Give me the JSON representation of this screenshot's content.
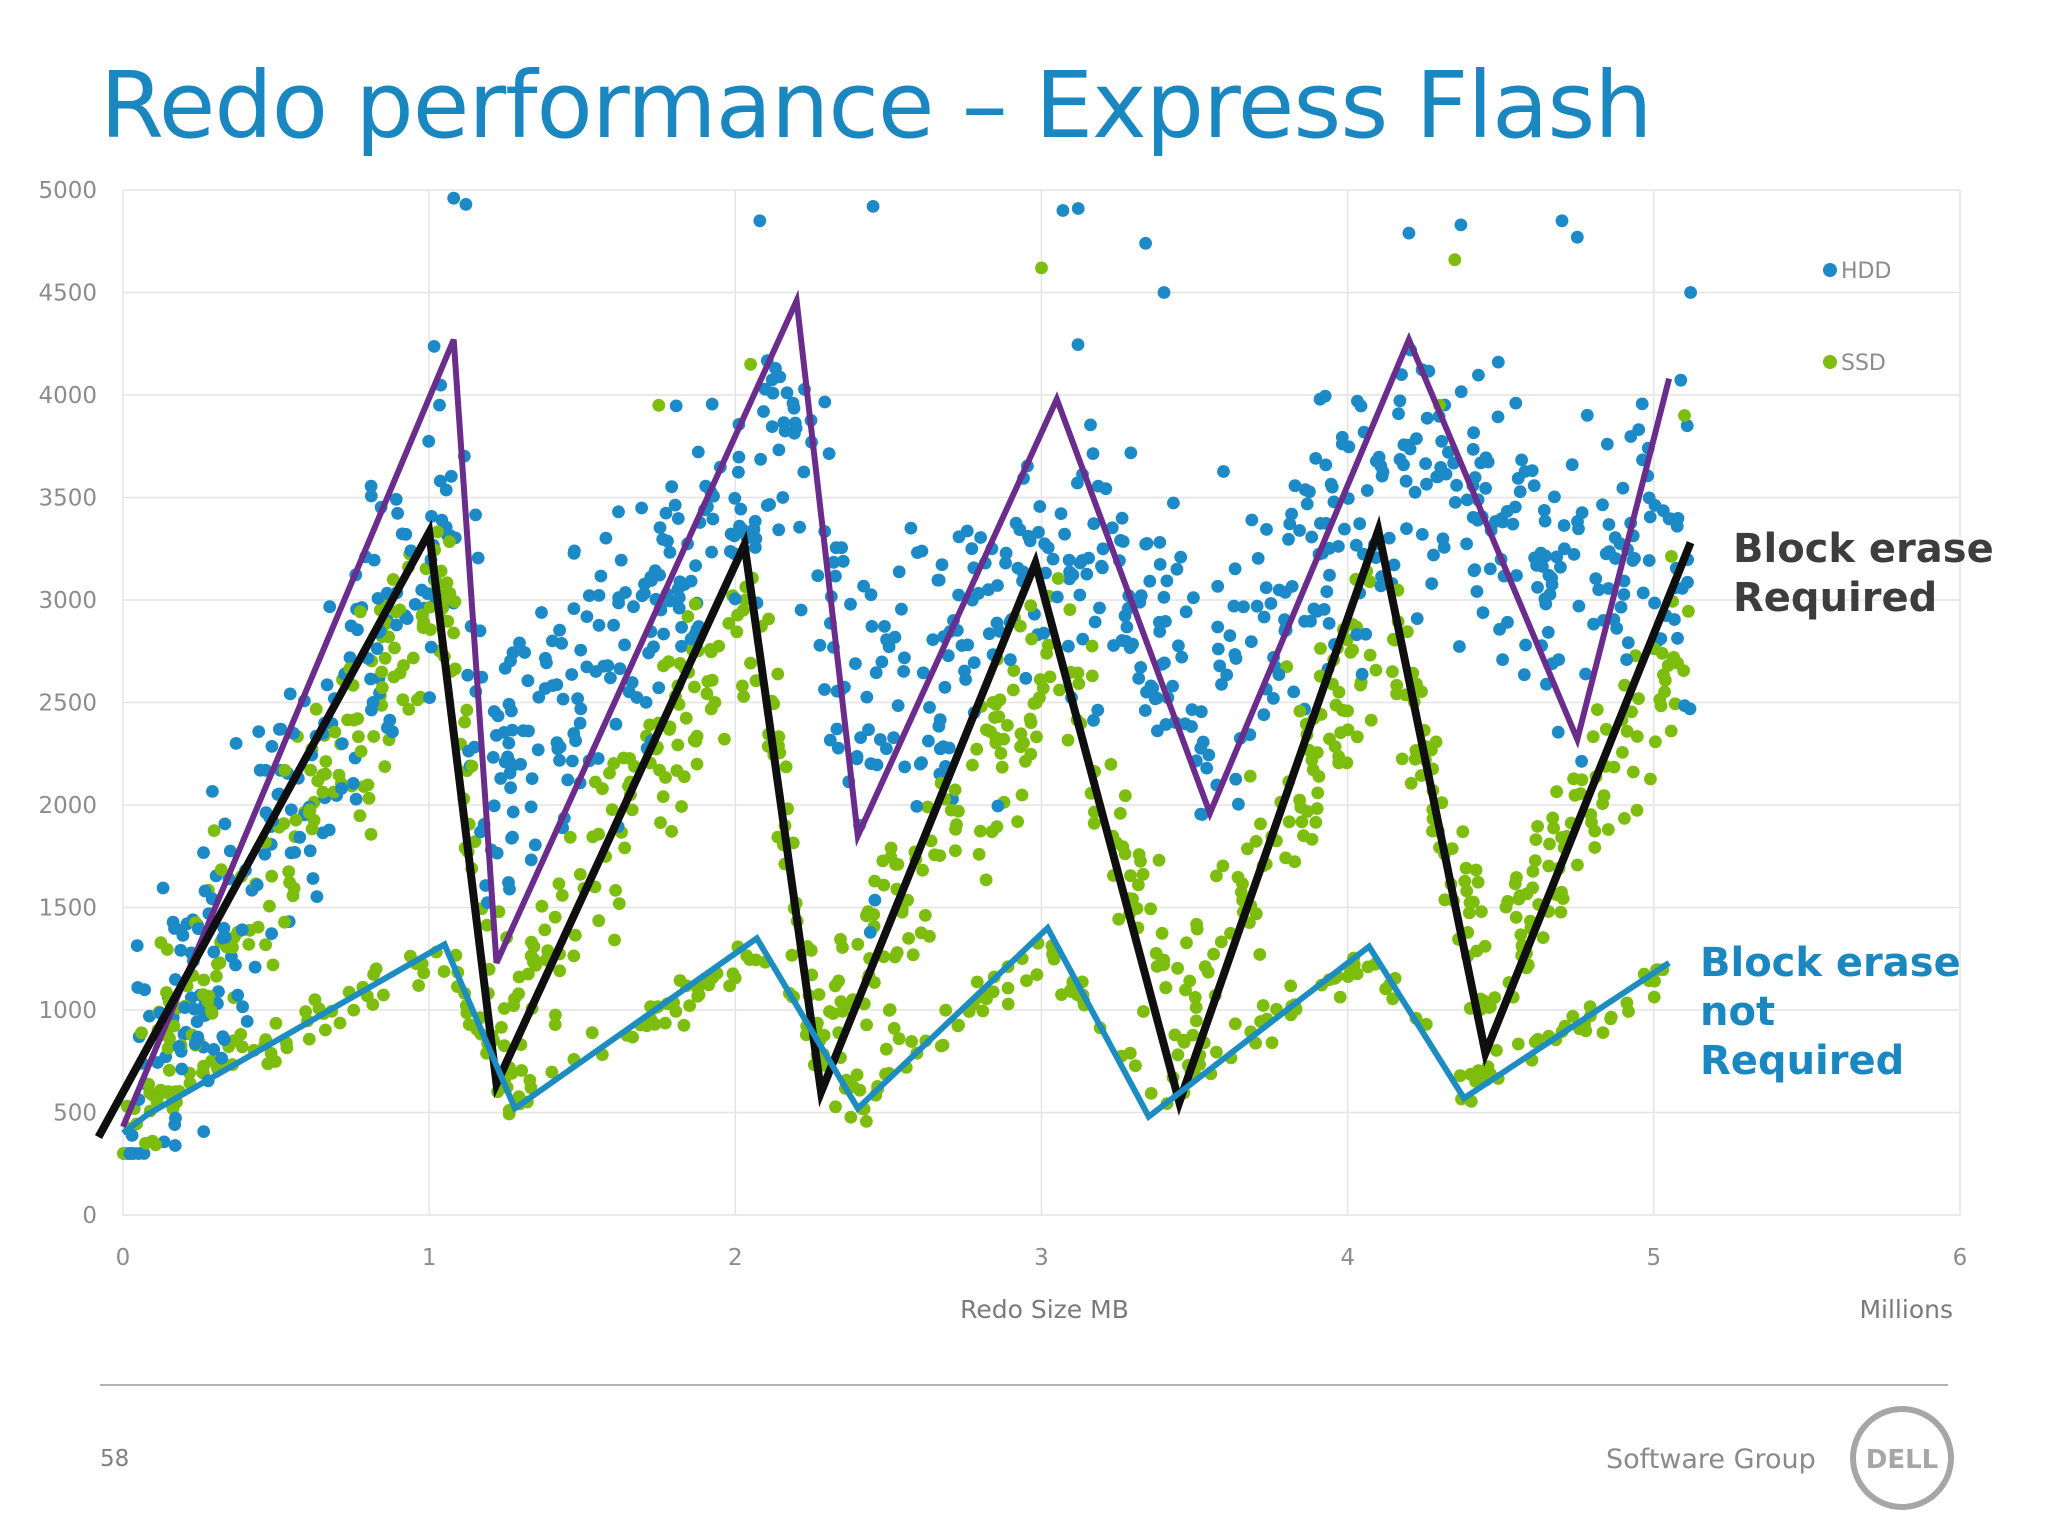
{
  "title": "Redo performance – Express Flash",
  "footer": {
    "page_number": "58",
    "group": "Software Group",
    "logo_text": "DELL"
  },
  "colors": {
    "title": "#1a87c0",
    "hdd": "#1b8ac6",
    "ssd": "#7cbd0d",
    "purple": "#6a2d8c",
    "black": "#0f0f0f",
    "blue_line": "#1d8cc0",
    "annot_dark": "#3d3d3d",
    "annot_blue": "#1a87c0"
  },
  "chart_data": {
    "type": "scatter",
    "xlabel": "Redo Size MB",
    "xunit_label": "Millions",
    "ylabel": "",
    "xlim": [
      0,
      6
    ],
    "ylim": [
      0,
      5000
    ],
    "xticks": [
      "0",
      "1",
      "2",
      "3",
      "4",
      "5",
      "6"
    ],
    "yticks": [
      "0",
      "500",
      "1000",
      "1500",
      "2000",
      "2500",
      "3000",
      "3500",
      "4000",
      "4500",
      "5000"
    ],
    "grid": true,
    "legend": {
      "position": "top-right",
      "entries": [
        "HDD",
        "SSD"
      ]
    },
    "scatter_series": [
      {
        "name": "HDD",
        "color_key": "hdd",
        "anchors": [
          [
            0.0,
            450
          ],
          [
            1.05,
            3500
          ],
          [
            1.22,
            2100
          ],
          [
            2.2,
            3800
          ],
          [
            2.4,
            2400
          ],
          [
            3.05,
            3300
          ],
          [
            3.55,
            2550
          ],
          [
            4.2,
            3650
          ],
          [
            4.75,
            3100
          ],
          [
            5.12,
            3350
          ]
        ],
        "spread": 650,
        "x_range": [
          0.0,
          5.12
        ],
        "count": 900,
        "extra_points": [
          [
            1.08,
            4960
          ],
          [
            1.12,
            4930
          ],
          [
            2.08,
            4850
          ],
          [
            2.45,
            4920
          ],
          [
            3.07,
            4900
          ],
          [
            3.12,
            4910
          ],
          [
            3.34,
            4740
          ],
          [
            4.2,
            4790
          ],
          [
            4.75,
            4770
          ],
          [
            4.7,
            4850
          ],
          [
            4.37,
            4830
          ],
          [
            3.4,
            4500
          ],
          [
            5.12,
            4500
          ]
        ]
      },
      {
        "name": "SSD",
        "color_key": "ssd",
        "anchors": [
          [
            0.0,
            450
          ],
          [
            1.05,
            3100
          ],
          [
            1.22,
            900
          ],
          [
            2.05,
            2950
          ],
          [
            2.28,
            850
          ],
          [
            3.05,
            2800
          ],
          [
            3.45,
            950
          ],
          [
            4.12,
            2900
          ],
          [
            4.45,
            1150
          ],
          [
            5.1,
            2800
          ]
        ],
        "spread": 420,
        "x_range": [
          0.0,
          5.12
        ],
        "count": 750,
        "extra_points": [
          [
            3.0,
            4620
          ],
          [
            4.35,
            4660
          ],
          [
            2.05,
            4150
          ],
          [
            4.3,
            3950
          ],
          [
            1.75,
            3950
          ],
          [
            5.1,
            3900
          ]
        ]
      },
      {
        "name": "SSD",
        "color_key": "ssd",
        "anchors": [
          [
            0.05,
            500
          ],
          [
            1.05,
            1250
          ],
          [
            1.28,
            560
          ],
          [
            2.07,
            1300
          ],
          [
            2.4,
            560
          ],
          [
            3.02,
            1300
          ],
          [
            3.35,
            560
          ],
          [
            4.07,
            1250
          ],
          [
            4.38,
            620
          ],
          [
            5.05,
            1150
          ]
        ],
        "spread": 110,
        "x_range": [
          0.05,
          5.12
        ],
        "count": 260,
        "extra_points": []
      }
    ],
    "trend_lines": [
      {
        "name": "Block erase Required (HDD envelope)",
        "color_key": "purple",
        "points": [
          [
            0.0,
            430
          ],
          [
            1.08,
            4270
          ],
          [
            1.22,
            1230
          ],
          [
            2.2,
            4460
          ],
          [
            2.4,
            1850
          ],
          [
            3.05,
            3980
          ],
          [
            3.55,
            1960
          ],
          [
            4.2,
            4270
          ],
          [
            4.75,
            2320
          ],
          [
            5.05,
            4080
          ]
        ]
      },
      {
        "name": "Block erase Required (SSD envelope)",
        "color_key": "black",
        "points": [
          [
            -0.08,
            380
          ],
          [
            1.0,
            3330
          ],
          [
            1.22,
            640
          ],
          [
            2.03,
            3270
          ],
          [
            2.28,
            600
          ],
          [
            2.98,
            3180
          ],
          [
            3.45,
            550
          ],
          [
            4.1,
            3340
          ],
          [
            4.45,
            790
          ],
          [
            5.12,
            3280
          ]
        ]
      },
      {
        "name": "Block erase not Required",
        "color_key": "blue_line",
        "points": [
          [
            0.0,
            400
          ],
          [
            0.08,
            490
          ],
          [
            1.05,
            1320
          ],
          [
            1.28,
            520
          ],
          [
            2.07,
            1350
          ],
          [
            2.4,
            520
          ],
          [
            3.02,
            1400
          ],
          [
            3.35,
            480
          ],
          [
            4.07,
            1310
          ],
          [
            4.38,
            570
          ],
          [
            5.05,
            1230
          ]
        ]
      }
    ],
    "annotations": [
      {
        "id": "required",
        "lines": [
          "Block erase",
          "Required"
        ],
        "color_key": "annot_dark"
      },
      {
        "id": "not-required",
        "lines": [
          "Block erase",
          "not",
          "Required"
        ],
        "color_key": "annot_blue"
      }
    ]
  }
}
